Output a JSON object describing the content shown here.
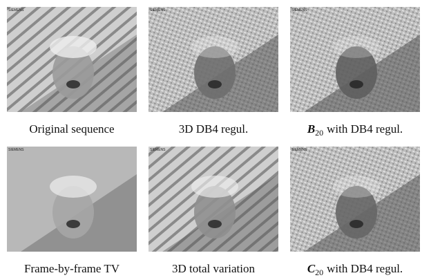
{
  "watermark": "SIEMENS",
  "panels": [
    {
      "caption": "Original sequence"
    },
    {
      "caption": "3D DB4 regul."
    },
    {
      "symbol": "B",
      "subscript": "20",
      "caption": "with DB4 regul."
    },
    {
      "caption": "Frame-by-frame TV"
    },
    {
      "caption": "3D total variation"
    },
    {
      "symbol": "C",
      "subscript": "20",
      "caption": "with DB4 regul."
    }
  ]
}
